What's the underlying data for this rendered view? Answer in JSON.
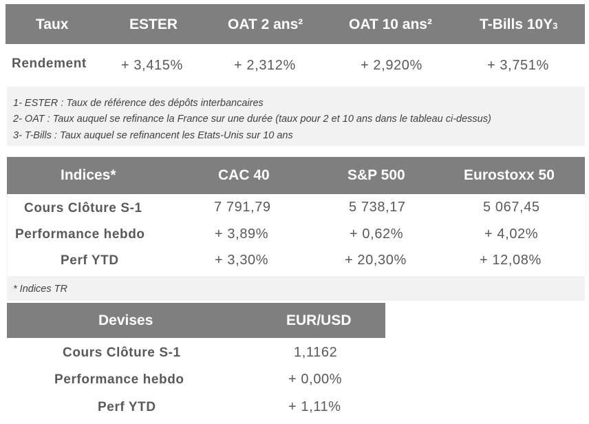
{
  "taux_table": {
    "headers": [
      "Taux",
      "ESTER",
      "OAT 2 ans²",
      "OAT 10 ans²",
      "T-Bills 10Y"
    ],
    "tbills_superscript": "3",
    "row": {
      "label": "Rendement",
      "values": [
        "+ 3,415%",
        "+ 2,312%",
        "+ 2,920%",
        "+ 3,751%"
      ]
    }
  },
  "taux_notes": [
    "1- ESTER : Taux de référence des dépôts interbancaires",
    "2- OAT : Taux auquel se refinance la France sur une durée (taux pour 2 et 10 ans dans le tableau ci-dessus)",
    "3- T-Bills : Taux auquel se refinancent les Etats-Unis sur 10 ans"
  ],
  "indices_table": {
    "headers": [
      "Indices*",
      "CAC 40",
      "S&P 500",
      "Eurostoxx 50"
    ],
    "rows": [
      {
        "label": "Cours Clôture S-1",
        "values": [
          "7 791,79",
          "5 738,17",
          "5 067,45"
        ]
      },
      {
        "label": "Performance hebdo",
        "values": [
          "+ 3,89%",
          "+ 0,62%",
          "+ 4,02%"
        ]
      },
      {
        "label": "Perf YTD",
        "values": [
          "+ 3,30%",
          "+ 20,30%",
          "+ 12,08%"
        ]
      }
    ],
    "note": "* Indices TR"
  },
  "devises_table": {
    "headers": [
      "Devises",
      "EUR/USD"
    ],
    "rows": [
      {
        "label": "Cours Clôture S-1",
        "value": "1,1162"
      },
      {
        "label": "Performance hebdo",
        "value": "+ 0,00%"
      },
      {
        "label": "Perf YTD",
        "value": "+ 1,11%"
      }
    ]
  },
  "colors": {
    "header_bg": "#7f7f7f",
    "panel_bg": "#f2f2f2",
    "text": "#595959"
  }
}
